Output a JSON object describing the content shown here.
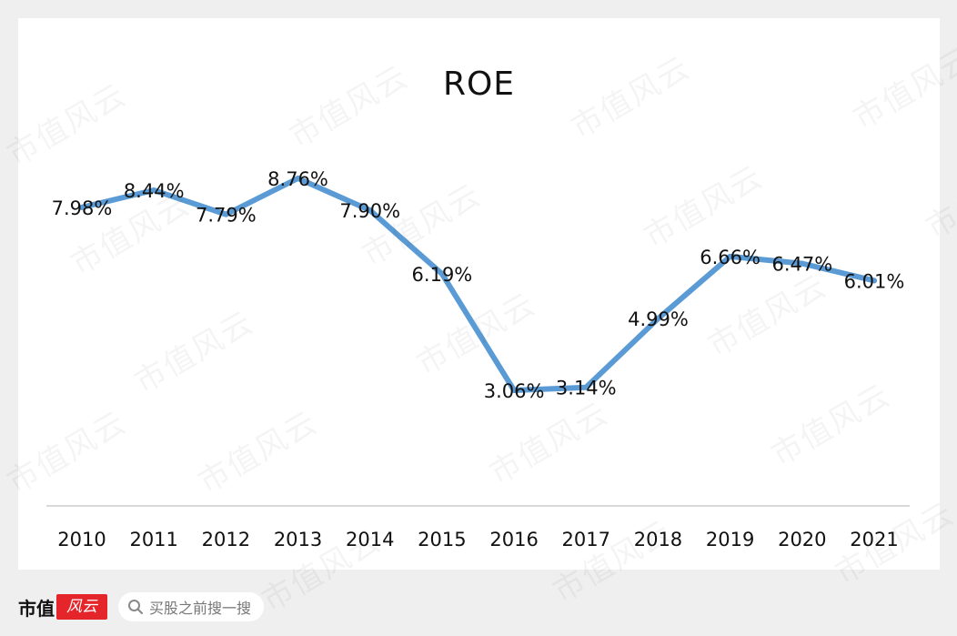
{
  "chart_data": {
    "type": "line",
    "title": "ROE",
    "x": [
      "2010",
      "2011",
      "2012",
      "2013",
      "2014",
      "2015",
      "2016",
      "2017",
      "2018",
      "2019",
      "2020",
      "2021"
    ],
    "series": [
      {
        "values": [
          7.98,
          8.44,
          7.79,
          8.76,
          7.9,
          6.19,
          3.06,
          3.14,
          4.99,
          6.66,
          6.47,
          6.01
        ],
        "labels": [
          "7.98%",
          "8.44%",
          "7.79%",
          "8.76%",
          "7.90%",
          "6.19%",
          "3.06%",
          "3.14%",
          "4.99%",
          "6.66%",
          "6.47%",
          "6.01%"
        ],
        "color": "#5b9bd5"
      }
    ],
    "xlabel": "",
    "ylabel": "",
    "grid": false,
    "legend": "none"
  },
  "footer": {
    "brand": "市值",
    "brand_seal": "风云",
    "search_placeholder": "买股之前搜一搜"
  },
  "watermark": "市值风云",
  "colors": {
    "line": "#5b9bd5",
    "axis": "#d9d9d9",
    "brand_red": "#e4252a"
  }
}
